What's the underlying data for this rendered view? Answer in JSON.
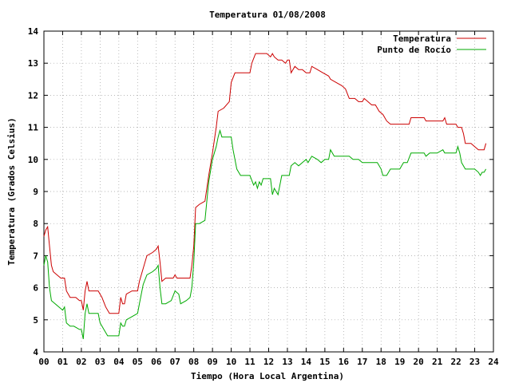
{
  "chart_data": {
    "type": "line",
    "title": "Temperatura 01/08/2008",
    "xlabel": "Tiempo (Hora Local Argentina)",
    "ylabel": "Temperatura (Grados Celsius)",
    "xlim": [
      0,
      24
    ],
    "ylim": [
      4,
      14
    ],
    "xticks": [
      0,
      1,
      2,
      3,
      4,
      5,
      6,
      7,
      8,
      9,
      10,
      11,
      12,
      13,
      14,
      15,
      16,
      17,
      18,
      19,
      20,
      21,
      22,
      23,
      24
    ],
    "xtick_labels": [
      "00",
      "01",
      "02",
      "03",
      "04",
      "05",
      "06",
      "07",
      "08",
      "09",
      "10",
      "11",
      "12",
      "13",
      "14",
      "15",
      "16",
      "17",
      "18",
      "19",
      "20",
      "21",
      "22",
      "23",
      "24"
    ],
    "yticks": [
      4,
      5,
      6,
      7,
      8,
      9,
      10,
      11,
      12,
      13,
      14
    ],
    "ytick_labels": [
      "4",
      "5",
      "6",
      "7",
      "8",
      "9",
      "10",
      "11",
      "12",
      "13",
      "14"
    ],
    "grid": true,
    "legend_position": "top-right",
    "series": [
      {
        "name": "Temperatura",
        "color": "#cc0000",
        "points": [
          [
            0.0,
            7.6
          ],
          [
            0.1,
            7.8
          ],
          [
            0.2,
            7.9
          ],
          [
            0.3,
            7.3
          ],
          [
            0.4,
            6.7
          ],
          [
            0.5,
            6.5
          ],
          [
            0.7,
            6.4
          ],
          [
            0.9,
            6.3
          ],
          [
            1.1,
            6.3
          ],
          [
            1.2,
            5.9
          ],
          [
            1.3,
            5.8
          ],
          [
            1.4,
            5.7
          ],
          [
            1.7,
            5.7
          ],
          [
            1.9,
            5.6
          ],
          [
            2.0,
            5.6
          ],
          [
            2.1,
            5.3
          ],
          [
            2.2,
            5.9
          ],
          [
            2.3,
            6.2
          ],
          [
            2.4,
            5.9
          ],
          [
            2.6,
            5.9
          ],
          [
            2.9,
            5.9
          ],
          [
            3.1,
            5.7
          ],
          [
            3.3,
            5.4
          ],
          [
            3.5,
            5.2
          ],
          [
            3.8,
            5.2
          ],
          [
            4.0,
            5.2
          ],
          [
            4.1,
            5.7
          ],
          [
            4.2,
            5.5
          ],
          [
            4.3,
            5.5
          ],
          [
            4.4,
            5.8
          ],
          [
            4.7,
            5.9
          ],
          [
            5.0,
            5.9
          ],
          [
            5.1,
            6.2
          ],
          [
            5.3,
            6.6
          ],
          [
            5.5,
            7.0
          ],
          [
            5.8,
            7.1
          ],
          [
            6.0,
            7.2
          ],
          [
            6.1,
            7.3
          ],
          [
            6.2,
            6.8
          ],
          [
            6.3,
            6.2
          ],
          [
            6.5,
            6.3
          ],
          [
            6.9,
            6.3
          ],
          [
            7.0,
            6.4
          ],
          [
            7.1,
            6.3
          ],
          [
            7.3,
            6.3
          ],
          [
            7.6,
            6.3
          ],
          [
            7.8,
            6.3
          ],
          [
            7.9,
            6.7
          ],
          [
            8.0,
            7.3
          ],
          [
            8.1,
            8.5
          ],
          [
            8.3,
            8.6
          ],
          [
            8.6,
            8.7
          ],
          [
            8.8,
            9.5
          ],
          [
            9.0,
            10.2
          ],
          [
            9.2,
            11.0
          ],
          [
            9.3,
            11.5
          ],
          [
            9.6,
            11.6
          ],
          [
            9.9,
            11.8
          ],
          [
            10.0,
            12.4
          ],
          [
            10.2,
            12.7
          ],
          [
            10.4,
            12.7
          ],
          [
            10.6,
            12.7
          ],
          [
            10.9,
            12.7
          ],
          [
            11.0,
            12.7
          ],
          [
            11.1,
            13.0
          ],
          [
            11.3,
            13.3
          ],
          [
            11.6,
            13.3
          ],
          [
            11.9,
            13.3
          ],
          [
            12.1,
            13.2
          ],
          [
            12.2,
            13.3
          ],
          [
            12.3,
            13.2
          ],
          [
            12.5,
            13.1
          ],
          [
            12.7,
            13.1
          ],
          [
            12.9,
            13.0
          ],
          [
            13.0,
            13.1
          ],
          [
            13.1,
            13.1
          ],
          [
            13.2,
            12.7
          ],
          [
            13.4,
            12.9
          ],
          [
            13.6,
            12.8
          ],
          [
            13.8,
            12.8
          ],
          [
            14.0,
            12.7
          ],
          [
            14.2,
            12.7
          ],
          [
            14.3,
            12.9
          ],
          [
            14.6,
            12.8
          ],
          [
            14.9,
            12.7
          ],
          [
            15.2,
            12.6
          ],
          [
            15.3,
            12.5
          ],
          [
            15.6,
            12.4
          ],
          [
            15.9,
            12.3
          ],
          [
            16.1,
            12.2
          ],
          [
            16.3,
            11.9
          ],
          [
            16.6,
            11.9
          ],
          [
            16.8,
            11.8
          ],
          [
            17.0,
            11.8
          ],
          [
            17.1,
            11.9
          ],
          [
            17.3,
            11.8
          ],
          [
            17.5,
            11.7
          ],
          [
            17.7,
            11.7
          ],
          [
            17.9,
            11.5
          ],
          [
            18.1,
            11.4
          ],
          [
            18.3,
            11.2
          ],
          [
            18.5,
            11.1
          ],
          [
            18.8,
            11.1
          ],
          [
            19.0,
            11.1
          ],
          [
            19.3,
            11.1
          ],
          [
            19.5,
            11.1
          ],
          [
            19.6,
            11.3
          ],
          [
            20.0,
            11.3
          ],
          [
            20.3,
            11.3
          ],
          [
            20.4,
            11.2
          ],
          [
            20.8,
            11.2
          ],
          [
            21.0,
            11.2
          ],
          [
            21.3,
            11.2
          ],
          [
            21.4,
            11.3
          ],
          [
            21.5,
            11.1
          ],
          [
            21.8,
            11.1
          ],
          [
            22.0,
            11.1
          ],
          [
            22.1,
            11.0
          ],
          [
            22.3,
            11.0
          ],
          [
            22.4,
            10.8
          ],
          [
            22.5,
            10.5
          ],
          [
            22.8,
            10.5
          ],
          [
            23.0,
            10.4
          ],
          [
            23.2,
            10.3
          ],
          [
            23.4,
            10.3
          ],
          [
            23.5,
            10.3
          ],
          [
            23.6,
            10.5
          ]
        ]
      },
      {
        "name": "Punto de Rocío",
        "color": "#00aa00",
        "points": [
          [
            0.0,
            6.7
          ],
          [
            0.1,
            7.0
          ],
          [
            0.2,
            6.8
          ],
          [
            0.3,
            6.0
          ],
          [
            0.4,
            5.6
          ],
          [
            0.6,
            5.5
          ],
          [
            0.8,
            5.4
          ],
          [
            1.0,
            5.3
          ],
          [
            1.1,
            5.4
          ],
          [
            1.2,
            4.9
          ],
          [
            1.4,
            4.8
          ],
          [
            1.6,
            4.8
          ],
          [
            1.9,
            4.7
          ],
          [
            2.0,
            4.7
          ],
          [
            2.1,
            4.4
          ],
          [
            2.2,
            5.2
          ],
          [
            2.3,
            5.5
          ],
          [
            2.4,
            5.2
          ],
          [
            2.6,
            5.2
          ],
          [
            2.9,
            5.2
          ],
          [
            3.0,
            4.9
          ],
          [
            3.2,
            4.7
          ],
          [
            3.4,
            4.5
          ],
          [
            3.7,
            4.5
          ],
          [
            4.0,
            4.5
          ],
          [
            4.1,
            4.9
          ],
          [
            4.2,
            4.8
          ],
          [
            4.3,
            4.8
          ],
          [
            4.4,
            5.0
          ],
          [
            4.7,
            5.1
          ],
          [
            5.0,
            5.2
          ],
          [
            5.1,
            5.5
          ],
          [
            5.3,
            6.1
          ],
          [
            5.5,
            6.4
          ],
          [
            5.8,
            6.5
          ],
          [
            6.0,
            6.6
          ],
          [
            6.1,
            6.7
          ],
          [
            6.2,
            6.0
          ],
          [
            6.3,
            5.5
          ],
          [
            6.5,
            5.5
          ],
          [
            6.8,
            5.6
          ],
          [
            7.0,
            5.9
          ],
          [
            7.2,
            5.8
          ],
          [
            7.3,
            5.5
          ],
          [
            7.6,
            5.6
          ],
          [
            7.8,
            5.7
          ],
          [
            7.9,
            6.0
          ],
          [
            8.0,
            6.8
          ],
          [
            8.1,
            8.0
          ],
          [
            8.3,
            8.0
          ],
          [
            8.6,
            8.1
          ],
          [
            8.8,
            9.3
          ],
          [
            9.0,
            10.0
          ],
          [
            9.2,
            10.4
          ],
          [
            9.3,
            10.7
          ],
          [
            9.4,
            10.9
          ],
          [
            9.5,
            10.7
          ],
          [
            9.8,
            10.7
          ],
          [
            10.0,
            10.7
          ],
          [
            10.1,
            10.3
          ],
          [
            10.3,
            9.7
          ],
          [
            10.5,
            9.5
          ],
          [
            10.8,
            9.5
          ],
          [
            11.0,
            9.5
          ],
          [
            11.2,
            9.2
          ],
          [
            11.3,
            9.3
          ],
          [
            11.4,
            9.1
          ],
          [
            11.5,
            9.3
          ],
          [
            11.6,
            9.2
          ],
          [
            11.7,
            9.4
          ],
          [
            11.9,
            9.4
          ],
          [
            12.1,
            9.4
          ],
          [
            12.2,
            8.9
          ],
          [
            12.3,
            9.1
          ],
          [
            12.5,
            8.9
          ],
          [
            12.7,
            9.5
          ],
          [
            12.9,
            9.5
          ],
          [
            13.1,
            9.5
          ],
          [
            13.2,
            9.8
          ],
          [
            13.4,
            9.9
          ],
          [
            13.6,
            9.8
          ],
          [
            13.8,
            9.9
          ],
          [
            14.0,
            10.0
          ],
          [
            14.1,
            9.9
          ],
          [
            14.3,
            10.1
          ],
          [
            14.6,
            10.0
          ],
          [
            14.8,
            9.9
          ],
          [
            15.0,
            10.0
          ],
          [
            15.2,
            10.0
          ],
          [
            15.3,
            10.3
          ],
          [
            15.5,
            10.1
          ],
          [
            15.8,
            10.1
          ],
          [
            16.0,
            10.1
          ],
          [
            16.3,
            10.1
          ],
          [
            16.5,
            10.0
          ],
          [
            16.8,
            10.0
          ],
          [
            17.0,
            9.9
          ],
          [
            17.2,
            9.9
          ],
          [
            17.4,
            9.9
          ],
          [
            17.6,
            9.9
          ],
          [
            17.8,
            9.9
          ],
          [
            18.0,
            9.7
          ],
          [
            18.1,
            9.5
          ],
          [
            18.3,
            9.5
          ],
          [
            18.5,
            9.7
          ],
          [
            18.8,
            9.7
          ],
          [
            19.0,
            9.7
          ],
          [
            19.2,
            9.9
          ],
          [
            19.4,
            9.9
          ],
          [
            19.6,
            10.2
          ],
          [
            20.0,
            10.2
          ],
          [
            20.3,
            10.2
          ],
          [
            20.4,
            10.1
          ],
          [
            20.6,
            10.2
          ],
          [
            21.0,
            10.2
          ],
          [
            21.3,
            10.3
          ],
          [
            21.4,
            10.2
          ],
          [
            21.7,
            10.2
          ],
          [
            22.0,
            10.2
          ],
          [
            22.1,
            10.4
          ],
          [
            22.2,
            10.2
          ],
          [
            22.3,
            9.9
          ],
          [
            22.5,
            9.7
          ],
          [
            22.8,
            9.7
          ],
          [
            23.0,
            9.7
          ],
          [
            23.2,
            9.6
          ],
          [
            23.3,
            9.5
          ],
          [
            23.4,
            9.6
          ],
          [
            23.5,
            9.6
          ],
          [
            23.6,
            9.7
          ]
        ]
      }
    ]
  }
}
